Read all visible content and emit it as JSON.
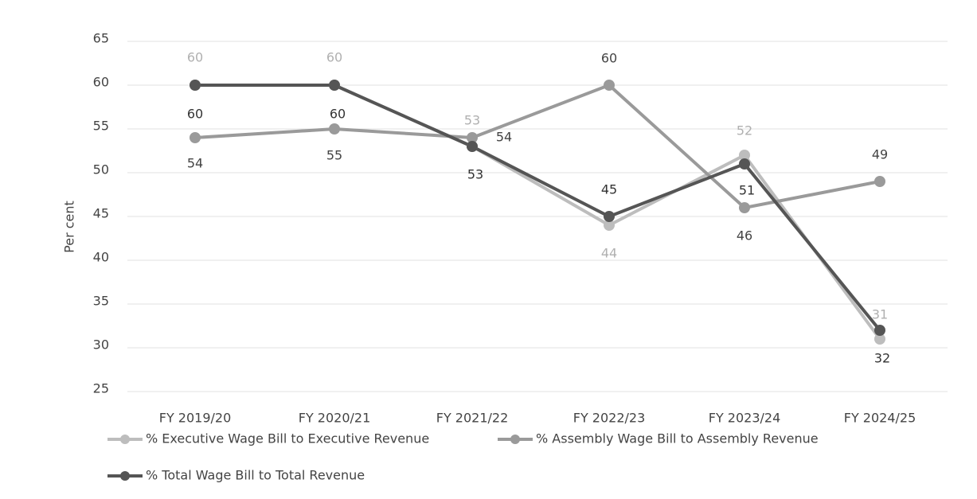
{
  "chart_data": {
    "type": "line",
    "y_label": "Per cent",
    "categories": [
      "FY 2019/20",
      "FY 2020/21",
      "FY 2021/22",
      "FY 2022/23",
      "FY 2023/24",
      "FY 2024/25"
    ],
    "series": [
      {
        "name": "% Executive Wage Bill to Executive Revenue",
        "color": "#bdbdbd",
        "values": [
          60,
          60,
          53,
          44,
          52,
          31
        ]
      },
      {
        "name": "% Assembly Wage Bill to Assembly Revenue",
        "color": "#9a9a9a",
        "values": [
          54,
          55,
          54,
          60,
          46,
          49
        ]
      },
      {
        "name": "% Total Wage Bill to Total Revenue",
        "color": "#555555",
        "values": [
          60,
          60,
          53,
          45,
          51,
          32
        ]
      }
    ],
    "ylim": [
      25,
      65
    ],
    "yticks": [
      25,
      30,
      35,
      40,
      45,
      50,
      55,
      60,
      65
    ],
    "grid": true
  }
}
